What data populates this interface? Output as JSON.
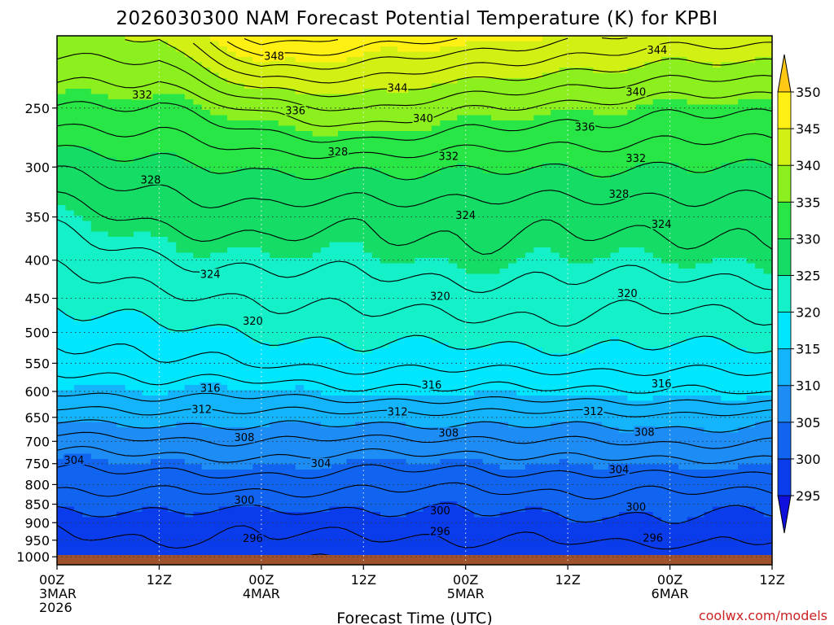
{
  "chart_data": {
    "type": "heatmap",
    "title": "2026030300 NAM Forecast Potential Temperature (K) for KPBI",
    "xlabel": "Forecast Time (UTC)",
    "ylabel": "",
    "credit": "coolwx.com/models",
    "x_range_hours": [
      0,
      84
    ],
    "x_ticks": [
      {
        "hour": 0,
        "line1": "00Z",
        "line2": "3MAR",
        "line3": "2026"
      },
      {
        "hour": 12,
        "line1": "12Z",
        "line2": "",
        "line3": ""
      },
      {
        "hour": 24,
        "line1": "00Z",
        "line2": "4MAR",
        "line3": ""
      },
      {
        "hour": 36,
        "line1": "12Z",
        "line2": "",
        "line3": ""
      },
      {
        "hour": 48,
        "line1": "00Z",
        "line2": "5MAR",
        "line3": ""
      },
      {
        "hour": 60,
        "line1": "12Z",
        "line2": "",
        "line3": ""
      },
      {
        "hour": 72,
        "line1": "00Z",
        "line2": "6MAR",
        "line3": ""
      },
      {
        "hour": 84,
        "line1": "12Z",
        "line2": "",
        "line3": ""
      }
    ],
    "y_range_hpa": [
      1025,
      200
    ],
    "y_ticks": [
      250,
      300,
      350,
      400,
      450,
      500,
      550,
      600,
      650,
      700,
      750,
      800,
      850,
      900,
      950,
      1000
    ],
    "colorbar": {
      "levels": [
        295,
        300,
        305,
        310,
        315,
        320,
        325,
        330,
        335,
        340,
        345,
        350
      ],
      "colors": [
        "#1010dc",
        "#0a3ceb",
        "#1064f0",
        "#1e8cf5",
        "#14b4fa",
        "#00e6ff",
        "#14f0c8",
        "#14dc64",
        "#28e646",
        "#8cf01e",
        "#d2f014",
        "#fff014",
        "#ffc814"
      ]
    },
    "contour_interval": 4,
    "profile_levels_hpa": [
      1025,
      1000,
      950,
      900,
      850,
      800,
      750,
      700,
      650,
      600,
      550,
      500,
      450,
      400,
      350,
      300,
      250,
      200
    ],
    "profile_hours": [
      0,
      12,
      24,
      36,
      48,
      60,
      72,
      84
    ],
    "theta": [
      [
        295.5,
        295.5,
        295.6,
        295.4,
        295.6,
        295.7,
        295.6,
        295.6
      ],
      [
        296.5,
        296.6,
        296.5,
        296.5,
        296.6,
        296.6,
        296.6,
        296.5
      ],
      [
        297.5,
        298.0,
        297.8,
        297.5,
        298.0,
        298.2,
        298.3,
        298.0
      ],
      [
        298.5,
        299.0,
        298.8,
        298.6,
        299.3,
        299.4,
        299.5,
        299.3
      ],
      [
        300.5,
        300.8,
        300.6,
        300.5,
        300.6,
        300.8,
        300.9,
        300.7
      ],
      [
        302.5,
        302.8,
        302.8,
        302.5,
        302.4,
        302.7,
        302.8,
        302.6
      ],
      [
        304.5,
        305.0,
        305.3,
        304.8,
        304.5,
        305.2,
        305.6,
        305.2
      ],
      [
        307.2,
        307.6,
        308.0,
        307.6,
        307.5,
        308.0,
        308.4,
        308.0
      ],
      [
        310.8,
        311.0,
        311.2,
        311.0,
        311.0,
        311.2,
        311.4,
        311.0
      ],
      [
        314.2,
        314.8,
        314.8,
        315.4,
        315.6,
        315.6,
        315.6,
        316.5
      ],
      [
        316.5,
        317.6,
        318.2,
        318.6,
        318.8,
        318.8,
        318.8,
        319.0
      ],
      [
        318.6,
        319.6,
        320.2,
        320.8,
        321.0,
        321.0,
        320.8,
        321.0
      ],
      [
        320.6,
        321.6,
        322.0,
        322.8,
        323.0,
        323.0,
        322.6,
        322.8
      ],
      [
        322.6,
        323.8,
        324.6,
        324.8,
        325.2,
        325.0,
        324.8,
        325.2
      ],
      [
        324.8,
        326.4,
        327.5,
        326.4,
        326.8,
        326.8,
        326.6,
        327.0
      ],
      [
        328.2,
        329.2,
        330.8,
        330.2,
        330.4,
        330.2,
        329.8,
        330.2
      ],
      [
        333.6,
        333.8,
        336.6,
        338.2,
        336.4,
        335.2,
        334.6,
        334.6
      ],
      [
        339.5,
        340.5,
        349.5,
        347.5,
        346.5,
        344.5,
        343.5,
        343.0
      ]
    ],
    "contour_labels": [
      {
        "value": 348,
        "hour": 25.5,
        "hpa": 213
      },
      {
        "value": 344,
        "hour": 40.0,
        "hpa": 235
      },
      {
        "value": 344,
        "hour": 70.5,
        "hpa": 209
      },
      {
        "value": 332,
        "hour": 10.0,
        "hpa": 240
      },
      {
        "value": 336,
        "hour": 28.0,
        "hpa": 252
      },
      {
        "value": 340,
        "hour": 43.0,
        "hpa": 258
      },
      {
        "value": 340,
        "hour": 68.0,
        "hpa": 238
      },
      {
        "value": 336,
        "hour": 62.0,
        "hpa": 265
      },
      {
        "value": 328,
        "hour": 33.0,
        "hpa": 286
      },
      {
        "value": 332,
        "hour": 46.0,
        "hpa": 290
      },
      {
        "value": 332,
        "hour": 68.0,
        "hpa": 292
      },
      {
        "value": 328,
        "hour": 11.0,
        "hpa": 312
      },
      {
        "value": 328,
        "hour": 66.0,
        "hpa": 326
      },
      {
        "value": 324,
        "hour": 48.0,
        "hpa": 348
      },
      {
        "value": 324,
        "hour": 71.0,
        "hpa": 358
      },
      {
        "value": 324,
        "hour": 18.0,
        "hpa": 418
      },
      {
        "value": 320,
        "hour": 45.0,
        "hpa": 447
      },
      {
        "value": 320,
        "hour": 67.0,
        "hpa": 443
      },
      {
        "value": 320,
        "hour": 23.0,
        "hpa": 483
      },
      {
        "value": 316,
        "hour": 18.0,
        "hpa": 594
      },
      {
        "value": 316,
        "hour": 44.0,
        "hpa": 588
      },
      {
        "value": 316,
        "hour": 71.0,
        "hpa": 586
      },
      {
        "value": 312,
        "hour": 17.0,
        "hpa": 634
      },
      {
        "value": 312,
        "hour": 40.0,
        "hpa": 639
      },
      {
        "value": 312,
        "hour": 63.0,
        "hpa": 638
      },
      {
        "value": 308,
        "hour": 22.0,
        "hpa": 692
      },
      {
        "value": 308,
        "hour": 46.0,
        "hpa": 682
      },
      {
        "value": 308,
        "hour": 69.0,
        "hpa": 680
      },
      {
        "value": 304,
        "hour": 2.0,
        "hpa": 742
      },
      {
        "value": 304,
        "hour": 31.0,
        "hpa": 750
      },
      {
        "value": 304,
        "hour": 66.0,
        "hpa": 764
      },
      {
        "value": 300,
        "hour": 22.0,
        "hpa": 839
      },
      {
        "value": 300,
        "hour": 45.0,
        "hpa": 867
      },
      {
        "value": 300,
        "hour": 68.0,
        "hpa": 857
      },
      {
        "value": 296,
        "hour": 23.0,
        "hpa": 945
      },
      {
        "value": 296,
        "hour": 45.0,
        "hpa": 925
      },
      {
        "value": 296,
        "hour": 70.0,
        "hpa": 943
      }
    ]
  }
}
